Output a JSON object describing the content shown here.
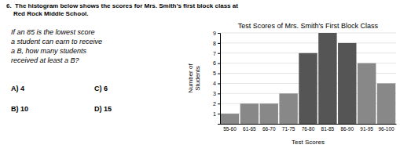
{
  "chart_data": {
    "type": "bar",
    "title": "Test Scores of Mrs. Smith's First Block Class",
    "x_label": "Test Scores",
    "y_label": "Number of\nStudents",
    "categories": [
      "55-60",
      "61-65",
      "66-70",
      "71-75",
      "76-80",
      "81-85",
      "86-90",
      "91-95",
      "96-100"
    ],
    "values": [
      1,
      2,
      2,
      3,
      7,
      9,
      8,
      6,
      4
    ],
    "colors": [
      "#888888",
      "#888888",
      "#888888",
      "#888888",
      "#555555",
      "#555555",
      "#555555",
      "#888888",
      "#888888"
    ],
    "ylim": [
      0,
      9
    ],
    "yticks": [
      1,
      2,
      3,
      4,
      5,
      6,
      7,
      8,
      9
    ],
    "grid": true,
    "annotations": [
      "6.  The histogram below shows the scores for Mrs. Smith’s first block class at",
      "    Red Rock Middle School.",
      "If an 85 is the lowest score\na student can earn to receive\na B, how many students\nreceived at least a B?",
      "A) 4",
      "C) 6",
      "B) 10",
      "D) 15"
    ]
  }
}
